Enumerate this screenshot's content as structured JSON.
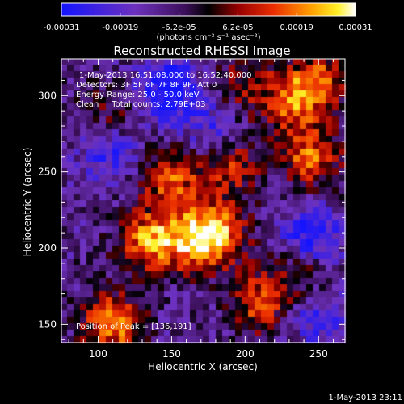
{
  "chart_data": {
    "type": "heatmap",
    "title": "Reconstructed RHESSI Image",
    "xlabel": "Heliocentric X (arcsec)",
    "ylabel": "Heliocentric Y (arcsec)",
    "xlim": [
      75,
      268
    ],
    "ylim": [
      138,
      324
    ],
    "xticks": [
      100,
      150,
      200,
      250
    ],
    "yticks": [
      150,
      200,
      250,
      300
    ],
    "colorbar": {
      "range": [
        -0.00031,
        0.00031
      ],
      "tick_labels": [
        "-0.00031",
        "-0.00019",
        "-6.2e-05",
        "6.2e-05",
        "0.00019",
        "0.00031"
      ],
      "units_label": "(photons cm⁻² s⁻¹ asec⁻²)"
    },
    "annotations": [
      "1-May-2013 16:51:08.000 to 16:52:40.000",
      "Detectors: 3F 5F 6F 7F 8F 9F, Att 0",
      "Energy Range: 25.0 - 50.0 keV",
      "Clean     Total counts: 2.79E+03"
    ],
    "peak_label": "Position of Peak = [136,191]",
    "bright_regions": [
      {
        "x": 110,
        "y": 150,
        "level": 0.95
      },
      {
        "x": 135,
        "y": 205,
        "level": 0.95
      },
      {
        "x": 165,
        "y": 205,
        "level": 0.9
      },
      {
        "x": 182,
        "y": 210,
        "level": 0.85
      },
      {
        "x": 150,
        "y": 246,
        "level": 0.8
      },
      {
        "x": 190,
        "y": 255,
        "level": 0.7
      },
      {
        "x": 210,
        "y": 165,
        "level": 0.75
      },
      {
        "x": 245,
        "y": 260,
        "level": 0.8
      },
      {
        "x": 232,
        "y": 295,
        "level": 0.7
      },
      {
        "x": 250,
        "y": 310,
        "level": 0.75
      },
      {
        "x": 200,
        "y": 305,
        "level": 0.5
      },
      {
        "x": 110,
        "y": 285,
        "level": 0.45
      },
      {
        "x": 240,
        "y": 185,
        "level": 0.55
      }
    ],
    "dark_regions": [
      {
        "x": 148,
        "y": 303,
        "level": -0.9
      },
      {
        "x": 108,
        "y": 265,
        "level": -0.6
      },
      {
        "x": 245,
        "y": 205,
        "level": -0.8
      },
      {
        "x": 250,
        "y": 155,
        "level": -0.5
      },
      {
        "x": 180,
        "y": 275,
        "level": -0.5
      }
    ]
  },
  "footer": {
    "timestamp": "1-May-2013 23:11"
  }
}
